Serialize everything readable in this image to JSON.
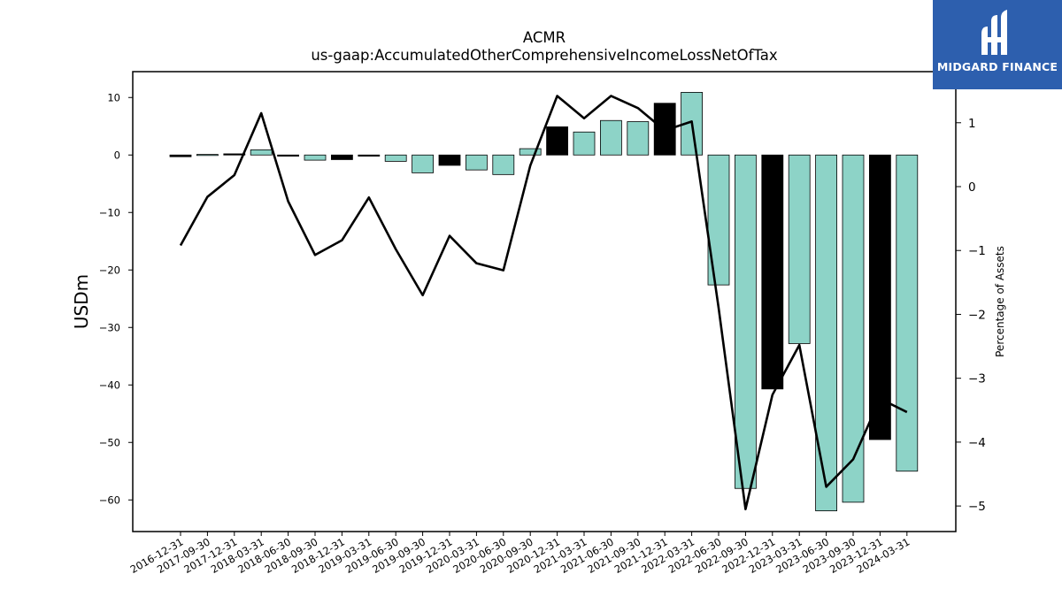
{
  "chart_data": {
    "type": "bar",
    "title": "ACMR",
    "subtitle": "us-gaap:AccumulatedOtherComprehensiveIncomeLossNetOfTax",
    "ylabel": "USDm",
    "y2label": "Percentage of Assets",
    "ylim": [
      -65.5,
      14.5
    ],
    "y2lim": [
      -5.4,
      1.8
    ],
    "yticks": [
      10,
      0,
      -10,
      -20,
      -30,
      -40,
      -50,
      -60
    ],
    "y2ticks": [
      1,
      0,
      -1,
      -2,
      -3,
      -4,
      -5
    ],
    "categories": [
      "2016-12-31",
      "2017-09-30",
      "2017-12-31",
      "2018-03-31",
      "2018-06-30",
      "2018-09-30",
      "2018-12-31",
      "2019-03-31",
      "2019-06-30",
      "2019-09-30",
      "2019-12-31",
      "2020-03-31",
      "2020-06-30",
      "2020-09-30",
      "2020-12-31",
      "2021-03-31",
      "2021-06-30",
      "2021-09-30",
      "2021-12-31",
      "2022-03-31",
      "2022-06-30",
      "2022-09-30",
      "2022-12-31",
      "2023-03-31",
      "2023-06-30",
      "2023-09-30",
      "2023-12-31",
      "2024-03-31"
    ],
    "series": [
      {
        "type": "bar",
        "values": [
          -0.3,
          0.1,
          0.2,
          0.9,
          -0.2,
          -0.9,
          -0.8,
          -0.2,
          -1.1,
          -3.1,
          -1.8,
          -2.6,
          -3.4,
          1.1,
          4.9,
          4.0,
          6.0,
          5.8,
          9.0,
          10.9,
          -22.6,
          -58.0,
          -40.7,
          -32.8,
          -61.9,
          -60.4,
          -49.5,
          -55.0
        ],
        "highlight": [
          true,
          false,
          true,
          false,
          true,
          false,
          true,
          true,
          false,
          false,
          true,
          false,
          false,
          false,
          true,
          false,
          false,
          false,
          true,
          false,
          false,
          false,
          true,
          false,
          false,
          false,
          true,
          false
        ]
      },
      {
        "type": "line",
        "axis": "right",
        "values": [
          -0.92,
          -0.16,
          0.18,
          1.15,
          -0.23,
          -1.07,
          -0.84,
          -0.17,
          -0.98,
          -1.7,
          -0.77,
          -1.2,
          -1.31,
          0.33,
          1.42,
          1.07,
          1.42,
          1.23,
          0.88,
          1.02,
          -1.9,
          -5.05,
          -3.26,
          -2.48,
          -4.7,
          -4.27,
          -3.32,
          -3.53
        ]
      }
    ],
    "colors": {
      "bar": "#8dd3c7",
      "bar_highlight": "#000000",
      "line": "#000000"
    }
  },
  "logo": {
    "text": "MIDGARD FINANCE",
    "background": "#2d5fae"
  }
}
